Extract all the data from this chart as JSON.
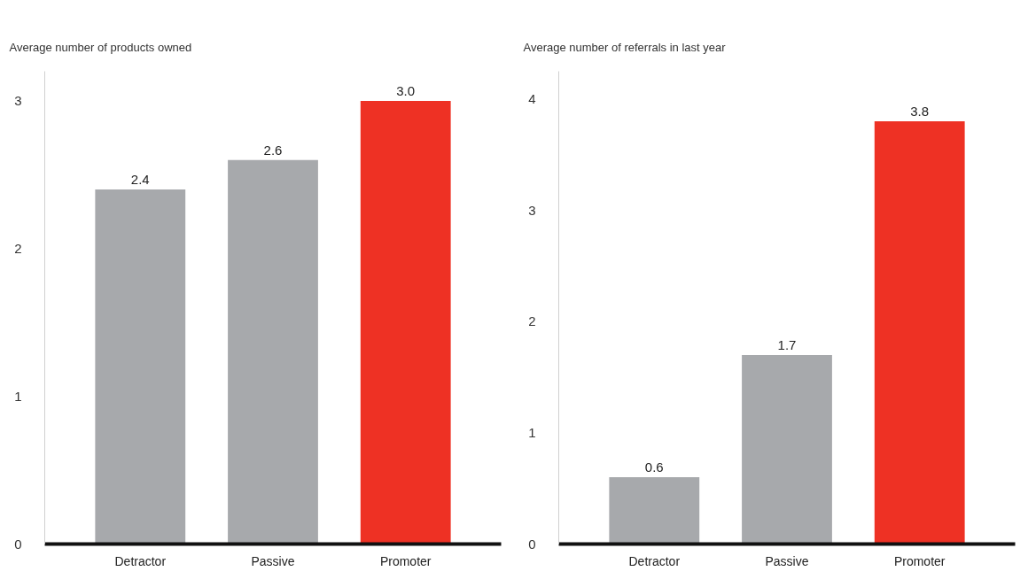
{
  "chart_data": [
    {
      "type": "bar",
      "title": "Average number of products owned",
      "categories": [
        "Detractor",
        "Passive",
        "Promoter"
      ],
      "values": [
        2.4,
        2.6,
        3.0
      ],
      "value_labels": [
        "2.4",
        "2.6",
        "3.0"
      ],
      "colors": [
        "#a7a9ac",
        "#a7a9ac",
        "#ee3124"
      ],
      "ylim": [
        0,
        3.2
      ],
      "yticks": [
        0,
        1,
        2,
        3
      ]
    },
    {
      "type": "bar",
      "title": "Average number of referrals in last year",
      "categories": [
        "Detractor",
        "Passive",
        "Promoter"
      ],
      "values": [
        0.6,
        1.7,
        3.8
      ],
      "value_labels": [
        "0.6",
        "1.7",
        "3.8"
      ],
      "colors": [
        "#a7a9ac",
        "#a7a9ac",
        "#ee3124"
      ],
      "ylim": [
        0,
        4.25
      ],
      "yticks": [
        0,
        1,
        2,
        3,
        4
      ]
    }
  ]
}
